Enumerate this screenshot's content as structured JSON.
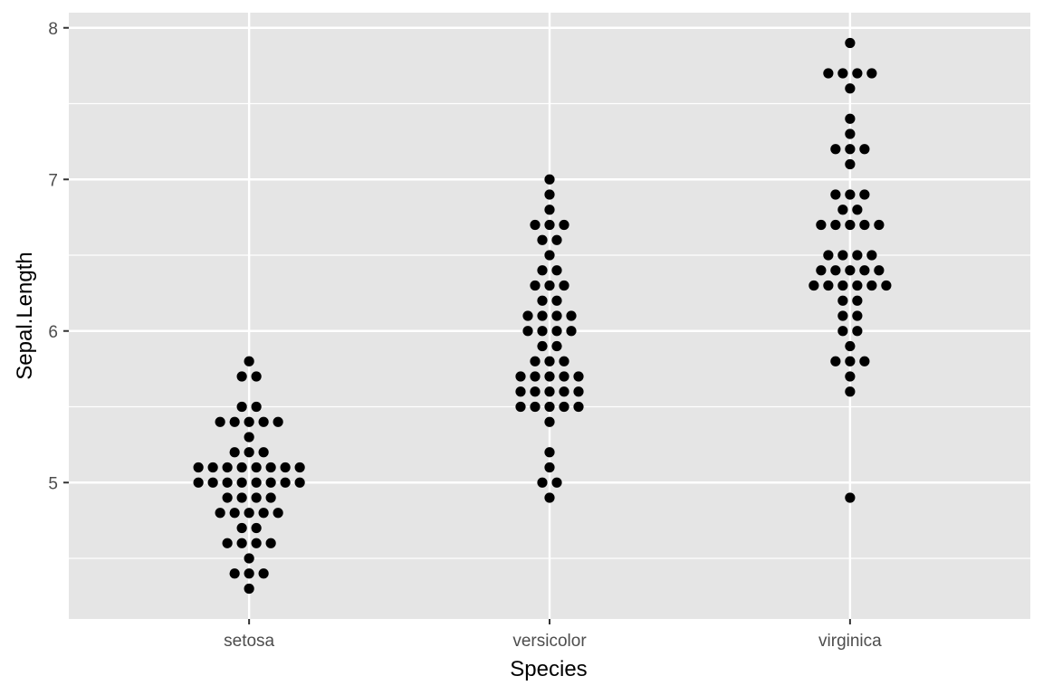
{
  "chart_data": {
    "type": "scatter",
    "title": "",
    "xlabel": "Species",
    "ylabel": "Sepal.Length",
    "categories": [
      "setosa",
      "versicolor",
      "virginica"
    ],
    "ylim": [
      4.1,
      8.1
    ],
    "yticks": [
      "5",
      "6",
      "7",
      "8"
    ],
    "grid": true,
    "legend": "none",
    "colors": {
      "panel": "#e5e5e5",
      "grid": "#ffffff",
      "point": "#000000"
    },
    "series": [
      {
        "category": "setosa",
        "values": [
          5.1,
          4.9,
          4.7,
          4.6,
          5.0,
          5.4,
          4.6,
          5.0,
          4.4,
          4.9,
          5.4,
          4.8,
          4.8,
          4.3,
          5.8,
          5.7,
          5.4,
          5.1,
          5.7,
          5.1,
          5.4,
          5.1,
          4.6,
          5.1,
          4.8,
          5.0,
          5.0,
          5.2,
          5.2,
          4.7,
          4.8,
          5.4,
          5.2,
          5.5,
          4.9,
          5.0,
          5.5,
          4.9,
          4.4,
          5.1,
          5.0,
          4.5,
          4.4,
          5.0,
          5.1,
          4.8,
          5.1,
          4.6,
          5.3,
          5.0
        ]
      },
      {
        "category": "versicolor",
        "values": [
          7.0,
          6.4,
          6.9,
          5.5,
          6.5,
          5.7,
          6.3,
          4.9,
          6.6,
          5.2,
          5.0,
          5.9,
          6.0,
          6.1,
          5.6,
          6.7,
          5.6,
          5.8,
          6.2,
          5.6,
          5.9,
          6.1,
          6.3,
          6.1,
          6.4,
          6.6,
          6.8,
          6.7,
          6.0,
          5.7,
          5.5,
          5.5,
          5.8,
          6.0,
          5.4,
          6.0,
          6.7,
          6.3,
          5.6,
          5.5,
          5.5,
          6.1,
          5.8,
          5.0,
          5.6,
          5.7,
          5.7,
          6.2,
          5.1,
          5.7
        ]
      },
      {
        "category": "virginica",
        "values": [
          6.3,
          5.8,
          7.1,
          6.3,
          6.5,
          7.6,
          4.9,
          7.3,
          6.7,
          7.2,
          6.5,
          6.4,
          6.8,
          5.7,
          5.8,
          6.4,
          6.5,
          7.7,
          7.7,
          6.0,
          6.9,
          5.6,
          7.7,
          6.3,
          6.7,
          7.2,
          6.2,
          6.1,
          6.4,
          7.2,
          7.4,
          7.9,
          6.4,
          6.3,
          6.1,
          7.7,
          6.3,
          6.4,
          6.0,
          6.9,
          6.7,
          6.9,
          5.8,
          6.8,
          6.7,
          6.7,
          6.3,
          6.5,
          6.2,
          5.9
        ]
      }
    ]
  }
}
